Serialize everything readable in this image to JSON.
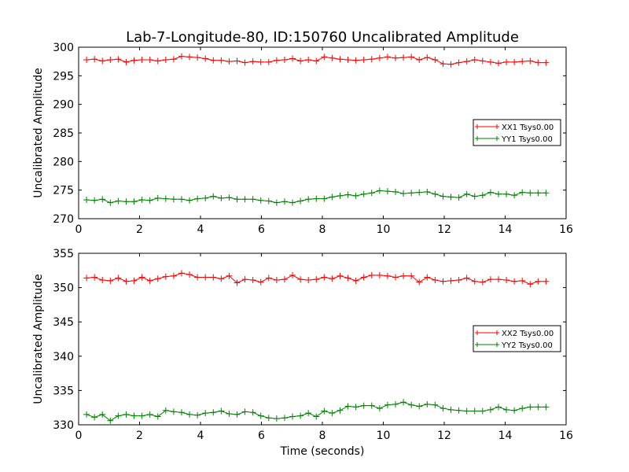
{
  "title": "Lab-7-Longitude-80, ID:150760 Uncalibrated Amplitude",
  "chart_data": [
    {
      "type": "line",
      "ylabel": "Uncalibrated Amplitude",
      "xlabel": "",
      "xlim": [
        0,
        16
      ],
      "ylim": [
        270,
        300
      ],
      "xticks": [
        "0",
        "2",
        "4",
        "6",
        "8",
        "10",
        "12",
        "14",
        "16"
      ],
      "yticks": [
        "270",
        "275",
        "280",
        "285",
        "290",
        "295",
        "300"
      ],
      "legend_position": "right",
      "x": [
        0.26,
        0.52,
        0.78,
        1.04,
        1.3,
        1.56,
        1.82,
        2.08,
        2.34,
        2.6,
        2.86,
        3.12,
        3.38,
        3.64,
        3.9,
        4.16,
        4.42,
        4.68,
        4.94,
        5.2,
        5.46,
        5.72,
        5.98,
        6.24,
        6.5,
        6.76,
        7.02,
        7.28,
        7.54,
        7.8,
        8.06,
        8.32,
        8.58,
        8.84,
        9.1,
        9.36,
        9.62,
        9.88,
        10.14,
        10.4,
        10.66,
        10.92,
        11.18,
        11.44,
        11.7,
        11.96,
        12.22,
        12.48,
        12.74,
        13.0,
        13.26,
        13.52,
        13.78,
        14.04,
        14.3,
        14.56,
        14.82,
        15.08,
        15.34
      ],
      "series": [
        {
          "name": "XX1 Tsys0.00",
          "color": "#ff0000",
          "values": [
            297.8,
            297.9,
            297.6,
            297.8,
            297.9,
            297.4,
            297.7,
            297.8,
            297.8,
            297.6,
            297.8,
            297.9,
            298.4,
            298.3,
            298.2,
            298.0,
            297.7,
            297.7,
            297.5,
            297.6,
            297.3,
            297.5,
            297.4,
            297.4,
            297.7,
            297.8,
            298.0,
            297.6,
            297.8,
            297.6,
            298.3,
            298.1,
            297.9,
            297.8,
            297.7,
            297.8,
            297.9,
            298.1,
            298.3,
            298.1,
            298.2,
            298.3,
            297.8,
            298.2,
            297.8,
            297.1,
            297.0,
            297.3,
            297.5,
            297.8,
            297.6,
            297.4,
            297.2,
            297.4,
            297.4,
            297.5,
            297.6,
            297.3,
            297.3
          ]
        },
        {
          "name": "YY1 Tsys0.00",
          "color": "#008000",
          "values": [
            273.3,
            273.2,
            273.4,
            272.8,
            273.1,
            273.0,
            273.0,
            273.3,
            273.2,
            273.6,
            273.5,
            273.4,
            273.4,
            273.2,
            273.5,
            273.6,
            273.9,
            273.6,
            273.7,
            273.4,
            273.4,
            273.4,
            273.2,
            273.1,
            272.8,
            273.0,
            272.8,
            273.1,
            273.4,
            273.5,
            273.5,
            273.8,
            274.0,
            274.2,
            274.0,
            274.3,
            274.5,
            274.9,
            274.8,
            274.7,
            274.4,
            274.5,
            274.6,
            274.7,
            274.3,
            273.9,
            273.8,
            273.7,
            274.3,
            273.9,
            274.1,
            274.6,
            274.3,
            274.3,
            274.1,
            274.6,
            274.5,
            274.5,
            274.5
          ]
        }
      ]
    },
    {
      "type": "line",
      "ylabel": "Uncalibrated Amplitude",
      "xlabel": "Time (seconds)",
      "xlim": [
        0,
        16
      ],
      "ylim": [
        330,
        355
      ],
      "xticks": [
        "0",
        "2",
        "4",
        "6",
        "8",
        "10",
        "12",
        "14",
        "16"
      ],
      "yticks": [
        "330",
        "335",
        "340",
        "345",
        "350",
        "355"
      ],
      "legend_position": "right",
      "x": [
        0.26,
        0.52,
        0.78,
        1.04,
        1.3,
        1.56,
        1.82,
        2.08,
        2.34,
        2.6,
        2.86,
        3.12,
        3.38,
        3.64,
        3.9,
        4.16,
        4.42,
        4.68,
        4.94,
        5.2,
        5.46,
        5.72,
        5.98,
        6.24,
        6.5,
        6.76,
        7.02,
        7.28,
        7.54,
        7.8,
        8.06,
        8.32,
        8.58,
        8.84,
        9.1,
        9.36,
        9.62,
        9.88,
        10.14,
        10.4,
        10.66,
        10.92,
        11.18,
        11.44,
        11.7,
        11.96,
        12.22,
        12.48,
        12.74,
        13.0,
        13.26,
        13.52,
        13.78,
        14.04,
        14.3,
        14.56,
        14.82,
        15.08,
        15.34
      ],
      "series": [
        {
          "name": "XX2 Tsys0.00",
          "color": "#ff0000",
          "values": [
            351.4,
            351.5,
            351.1,
            351.0,
            351.4,
            350.9,
            351.0,
            351.5,
            351.0,
            351.3,
            351.6,
            351.7,
            352.1,
            351.9,
            351.5,
            351.5,
            351.5,
            351.3,
            351.7,
            350.7,
            351.2,
            351.1,
            350.8,
            351.4,
            351.1,
            351.2,
            351.8,
            351.2,
            351.1,
            351.2,
            351.5,
            351.3,
            351.7,
            351.4,
            351.0,
            351.5,
            351.8,
            351.8,
            351.7,
            351.5,
            351.7,
            351.7,
            350.8,
            351.5,
            351.1,
            350.9,
            351.0,
            351.1,
            351.4,
            350.9,
            350.8,
            351.2,
            351.2,
            351.1,
            350.9,
            351.0,
            350.5,
            350.9,
            350.9
          ]
        },
        {
          "name": "YY2 Tsys0.00",
          "color": "#008000",
          "values": [
            331.5,
            331.1,
            331.5,
            330.6,
            331.3,
            331.5,
            331.3,
            331.3,
            331.5,
            331.2,
            332.1,
            331.9,
            331.8,
            331.5,
            331.4,
            331.7,
            331.8,
            332.0,
            331.6,
            331.5,
            331.9,
            331.8,
            331.3,
            331.0,
            330.9,
            331.0,
            331.2,
            331.3,
            331.7,
            331.2,
            332.0,
            331.7,
            332.1,
            332.7,
            332.6,
            332.8,
            332.8,
            332.4,
            332.9,
            333.0,
            333.3,
            332.9,
            332.7,
            333.0,
            332.9,
            332.4,
            332.2,
            332.1,
            332.0,
            332.0,
            332.0,
            332.2,
            332.6,
            332.2,
            332.1,
            332.4,
            332.6,
            332.6,
            332.6
          ]
        }
      ]
    }
  ]
}
